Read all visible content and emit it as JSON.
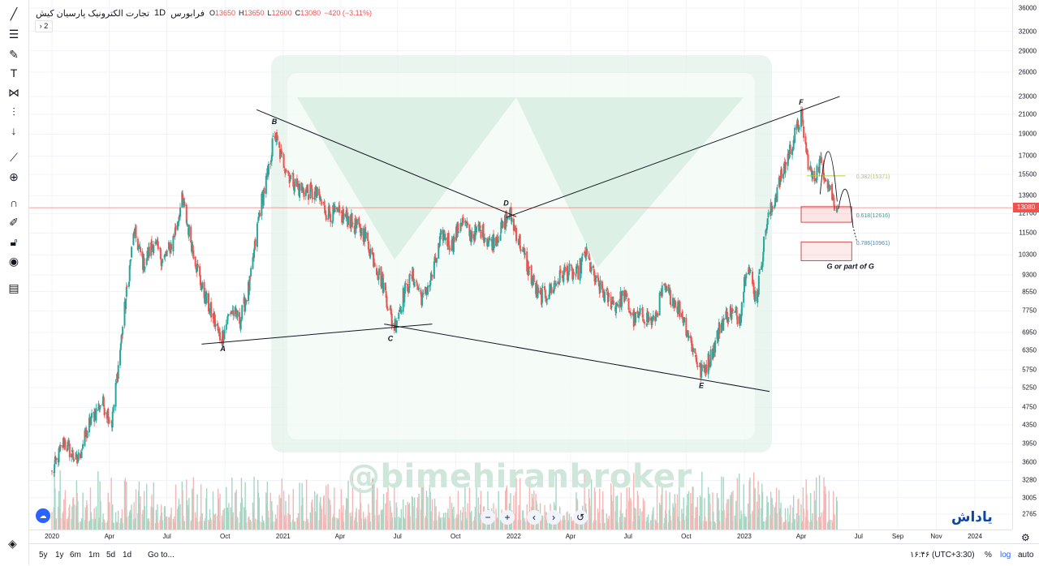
{
  "header": {
    "symbol_name": "تجارت الکترونیک پارسیان کیش",
    "interval": "1D",
    "exchange": "فرابورس",
    "open_label": "O",
    "open": "13650",
    "high_label": "H",
    "high": "13650",
    "low_label": "L",
    "low": "12600",
    "close_label": "C",
    "close": "13080",
    "change": "−420 (−3.11%)",
    "collapse_label": "› 2"
  },
  "toolbar": {
    "icons": [
      "trend-line-icon",
      "fib-icon",
      "brush-icon",
      "text-icon",
      "pattern-icon",
      "measure-icon",
      "arrow-down-icon",
      "ruler-icon",
      "zoom-icon",
      "magnet-icon",
      "lock-draw-icon",
      "lock-icon",
      "eye-icon",
      "trash-icon"
    ]
  },
  "price_axis": {
    "ticks": [
      "36000",
      "32000",
      "29000",
      "26000",
      "23000",
      "21000",
      "19000",
      "17000",
      "15500",
      "13900",
      "12700",
      "11500",
      "10300",
      "9300",
      "8550",
      "7750",
      "6950",
      "6350",
      "5750",
      "5250",
      "4750",
      "4350",
      "3950",
      "3600",
      "3280",
      "3005",
      "2765"
    ],
    "last_price": "13080"
  },
  "time_axis": {
    "ticks": [
      "2020",
      "Apr",
      "Jul",
      "Oct",
      "2021",
      "Apr",
      "Jul",
      "Oct",
      "2022",
      "Apr",
      "Jul",
      "Oct",
      "2023",
      "Apr",
      "Jul",
      "Sep",
      "Nov",
      "2024"
    ]
  },
  "bottom_bar": {
    "periods": [
      "5y",
      "1y",
      "6m",
      "1m",
      "5d",
      "1d"
    ],
    "goto": "Go to...",
    "clock": "۱۶:۴۶ (UTC+3:30)",
    "percent": "%",
    "log": "log",
    "auto": "auto"
  },
  "nav_controls": [
    "−",
    "+",
    "‹",
    "›",
    "↺"
  ],
  "watermark": "@bimehiranbroker",
  "logo": "یاداش",
  "chart_data": {
    "type": "candlestick",
    "scale": "log",
    "colors": {
      "up": "#26a69a",
      "down": "#ef5350",
      "volume_up": "#a5d6c4",
      "volume_down": "#f5b7b5",
      "fib382": "#b0cf3c",
      "fib618": "#26a69a",
      "fib786": "#2196f3",
      "box": "#e57373"
    },
    "price_path": [
      [
        "2020-01-01",
        3400
      ],
      [
        "2020-01-20",
        4000
      ],
      [
        "2020-02-10",
        3600
      ],
      [
        "2020-03-01",
        4400
      ],
      [
        "2020-03-20",
        4900
      ],
      [
        "2020-04-05",
        4400
      ],
      [
        "2020-04-25",
        7800
      ],
      [
        "2020-05-10",
        11600
      ],
      [
        "2020-05-25",
        9800
      ],
      [
        "2020-06-10",
        11000
      ],
      [
        "2020-06-25",
        10000
      ],
      [
        "2020-07-10",
        11000
      ],
      [
        "2020-07-25",
        13600
      ],
      [
        "2020-08-10",
        10800
      ],
      [
        "2020-08-25",
        8700
      ],
      [
        "2020-09-10",
        7600
      ],
      [
        "2020-09-25",
        6700
      ],
      [
        "2020-10-10",
        7800
      ],
      [
        "2020-10-25",
        7400
      ],
      [
        "2020-11-10",
        9000
      ],
      [
        "2020-11-25",
        13000
      ],
      [
        "2020-12-10",
        16000
      ],
      [
        "2020-12-18",
        19200
      ],
      [
        "2020-12-28",
        17000
      ],
      [
        "2021-01-10",
        15500
      ],
      [
        "2021-01-25",
        14400
      ],
      [
        "2021-02-10",
        14200
      ],
      [
        "2021-02-25",
        13900
      ],
      [
        "2021-03-10",
        12800
      ],
      [
        "2021-04-10",
        12500
      ],
      [
        "2021-05-10",
        11400
      ],
      [
        "2021-06-10",
        8700
      ],
      [
        "2021-06-25",
        7100
      ],
      [
        "2021-07-10",
        8400
      ],
      [
        "2021-07-25",
        9300
      ],
      [
        "2021-08-10",
        8200
      ],
      [
        "2021-08-25",
        9300
      ],
      [
        "2021-09-10",
        11500
      ],
      [
        "2021-09-25",
        10800
      ],
      [
        "2021-10-10",
        12300
      ],
      [
        "2021-10-25",
        11400
      ],
      [
        "2021-11-10",
        11700
      ],
      [
        "2021-11-25",
        10900
      ],
      [
        "2021-12-10",
        11500
      ],
      [
        "2021-12-25",
        12800
      ],
      [
        "2022-01-10",
        11000
      ],
      [
        "2022-01-25",
        9500
      ],
      [
        "2022-02-10",
        8300
      ],
      [
        "2022-02-25",
        8500
      ],
      [
        "2022-03-10",
        9000
      ],
      [
        "2022-03-25",
        9500
      ],
      [
        "2022-04-10",
        9300
      ],
      [
        "2022-04-25",
        10400
      ],
      [
        "2022-05-10",
        9000
      ],
      [
        "2022-05-25",
        8400
      ],
      [
        "2022-06-10",
        8000
      ],
      [
        "2022-06-25",
        8400
      ],
      [
        "2022-07-10",
        7400
      ],
      [
        "2022-07-25",
        7600
      ],
      [
        "2022-08-10",
        7300
      ],
      [
        "2022-08-25",
        8600
      ],
      [
        "2022-09-10",
        8300
      ],
      [
        "2022-09-25",
        7600
      ],
      [
        "2022-10-10",
        6500
      ],
      [
        "2022-10-25",
        5650
      ],
      [
        "2022-11-10",
        6200
      ],
      [
        "2022-11-25",
        7300
      ],
      [
        "2022-12-10",
        7700
      ],
      [
        "2022-12-25",
        7500
      ],
      [
        "2023-01-05",
        10000
      ],
      [
        "2023-01-20",
        8200
      ],
      [
        "2023-02-05",
        12000
      ],
      [
        "2023-02-20",
        14000
      ],
      [
        "2023-03-05",
        16000
      ],
      [
        "2023-03-20",
        18500
      ],
      [
        "2023-04-01",
        21000
      ],
      [
        "2023-04-10",
        17000
      ],
      [
        "2023-04-20",
        15000
      ],
      [
        "2023-05-01",
        16500
      ],
      [
        "2023-05-10",
        15400
      ],
      [
        "2023-05-20",
        13900
      ],
      [
        "2023-05-28",
        13080
      ]
    ],
    "pattern_points": [
      {
        "label": "A",
        "date": "2020-09-25",
        "price": 6700
      },
      {
        "label": "B",
        "date": "2020-12-18",
        "price": 19200
      },
      {
        "label": "C",
        "date": "2021-06-25",
        "price": 7100
      },
      {
        "label": "D",
        "date": "2021-12-25",
        "price": 12800
      },
      {
        "label": "E",
        "date": "2022-10-25",
        "price": 5650
      },
      {
        "label": "F",
        "date": "2023-04-01",
        "price": 21000
      }
    ],
    "fib_levels": [
      {
        "label": "0.382(15371)",
        "price": 15371
      },
      {
        "label": "0.618(12616)",
        "price": 12616
      },
      {
        "label": "0.786(10961)",
        "price": 10961
      }
    ],
    "annotation": "G or part of G",
    "last_price": 13080
  }
}
